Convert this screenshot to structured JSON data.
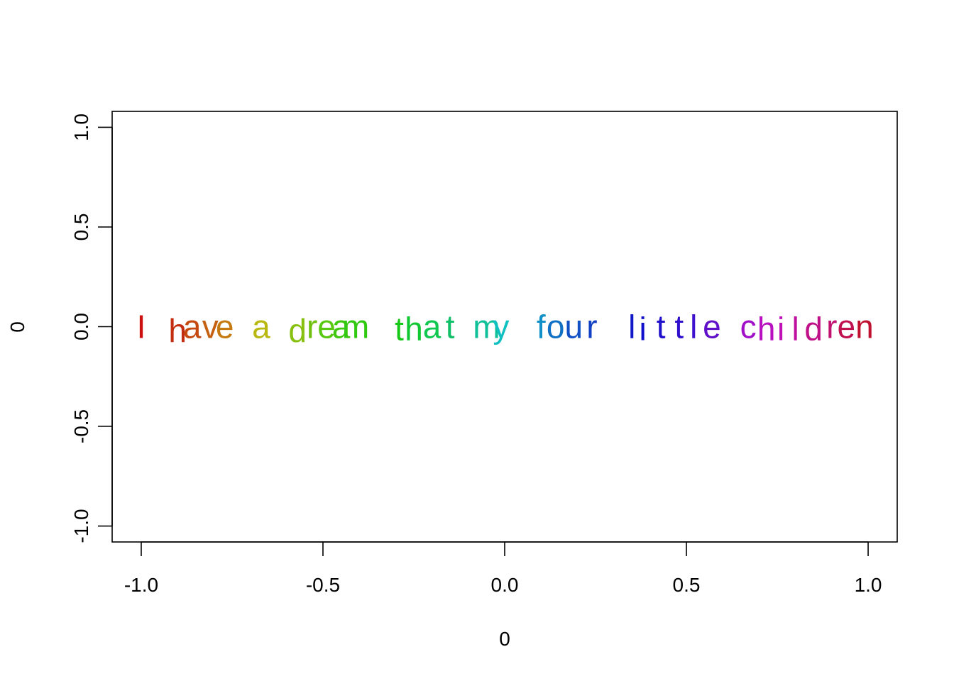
{
  "chart_data": {
    "type": "scatter",
    "title": "",
    "xlabel": "0",
    "ylabel": "0",
    "xlim": [
      -1.08,
      1.08
    ],
    "ylim": [
      -1.08,
      1.08
    ],
    "x_ticks": [
      "-1.0",
      "-0.5",
      "0.0",
      "0.5",
      "1.0"
    ],
    "x_tick_values": [
      -1.0,
      -0.5,
      0.0,
      0.5,
      1.0
    ],
    "y_ticks": [
      "-1.0",
      "-0.5",
      "0.0",
      "0.5",
      "1.0"
    ],
    "y_tick_values": [
      -1.0,
      -0.5,
      0.0,
      0.5,
      1.0
    ],
    "grid": false,
    "text": "I have a dream that my four little children",
    "points": [
      {
        "label": "I",
        "x": -1.0,
        "y": 0.0,
        "color": "#cc1010"
      },
      {
        "label": "h",
        "x": -0.9,
        "y": -0.02,
        "color": "#c42e10"
      },
      {
        "label": "a",
        "x": -0.86,
        "y": 0.0,
        "color": "#c44a10"
      },
      {
        "label": "v",
        "x": -0.81,
        "y": 0.0,
        "color": "#c46010"
      },
      {
        "label": "e",
        "x": -0.77,
        "y": 0.0,
        "color": "#c47a10"
      },
      {
        "label": "a",
        "x": -0.67,
        "y": 0.0,
        "color": "#b8b810"
      },
      {
        "label": "d",
        "x": -0.57,
        "y": -0.02,
        "color": "#88c010"
      },
      {
        "label": "r",
        "x": -0.53,
        "y": 0.0,
        "color": "#70c010"
      },
      {
        "label": "e",
        "x": -0.49,
        "y": 0.0,
        "color": "#58c810"
      },
      {
        "label": "a",
        "x": -0.45,
        "y": 0.0,
        "color": "#40c810"
      },
      {
        "label": "m",
        "x": -0.41,
        "y": 0.0,
        "color": "#30c810"
      },
      {
        "label": "t",
        "x": -0.29,
        "y": -0.01,
        "color": "#18c818"
      },
      {
        "label": "h",
        "x": -0.25,
        "y": -0.01,
        "color": "#10c830"
      },
      {
        "label": "a",
        "x": -0.2,
        "y": 0.0,
        "color": "#10c850"
      },
      {
        "label": "t",
        "x": -0.15,
        "y": 0.0,
        "color": "#10c068"
      },
      {
        "label": "m",
        "x": -0.05,
        "y": 0.0,
        "color": "#10c098"
      },
      {
        "label": "y",
        "x": -0.01,
        "y": 0.0,
        "color": "#10c0c0"
      },
      {
        "label": "f",
        "x": 0.1,
        "y": 0.0,
        "color": "#1090c8"
      },
      {
        "label": "o",
        "x": 0.14,
        "y": 0.0,
        "color": "#1070c4"
      },
      {
        "label": "u",
        "x": 0.19,
        "y": 0.0,
        "color": "#1050c4"
      },
      {
        "label": "r",
        "x": 0.24,
        "y": 0.0,
        "color": "#1040c4"
      },
      {
        "label": "l",
        "x": 0.35,
        "y": 0.0,
        "color": "#1018c8"
      },
      {
        "label": "i",
        "x": 0.38,
        "y": -0.01,
        "color": "#1010cc"
      },
      {
        "label": "t",
        "x": 0.43,
        "y": 0.0,
        "color": "#2010cc"
      },
      {
        "label": "t",
        "x": 0.48,
        "y": 0.0,
        "color": "#3010cc"
      },
      {
        "label": "l",
        "x": 0.52,
        "y": 0.0,
        "color": "#4010cc"
      },
      {
        "label": "e",
        "x": 0.57,
        "y": 0.0,
        "color": "#6010c8"
      },
      {
        "label": "c",
        "x": 0.67,
        "y": 0.0,
        "color": "#a010c8"
      },
      {
        "label": "h",
        "x": 0.72,
        "y": -0.01,
        "color": "#b810c0"
      },
      {
        "label": "i",
        "x": 0.76,
        "y": -0.01,
        "color": "#c010b8"
      },
      {
        "label": "l",
        "x": 0.8,
        "y": -0.01,
        "color": "#c010a0"
      },
      {
        "label": "d",
        "x": 0.85,
        "y": -0.01,
        "color": "#c01088"
      },
      {
        "label": "r",
        "x": 0.9,
        "y": 0.0,
        "color": "#c01070"
      },
      {
        "label": "e",
        "x": 0.94,
        "y": 0.0,
        "color": "#c01050"
      },
      {
        "label": "n",
        "x": 0.99,
        "y": 0.0,
        "color": "#c01030"
      }
    ]
  }
}
